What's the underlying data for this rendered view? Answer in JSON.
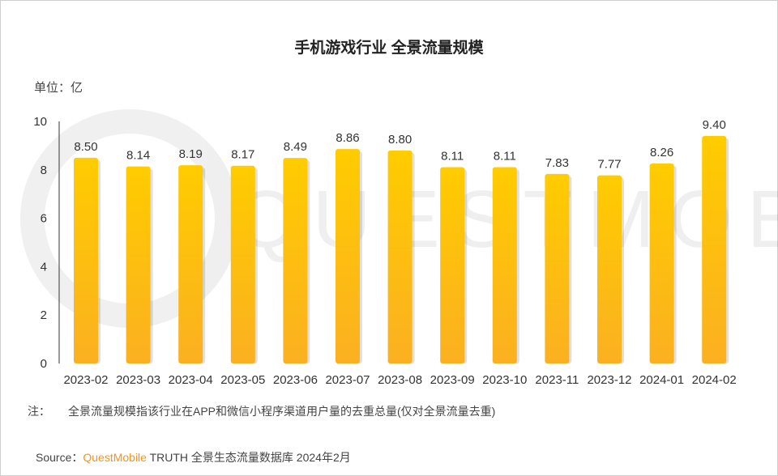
{
  "chart_data": {
    "type": "bar",
    "title": "手机游戏行业 全景流量规模",
    "unit_label": "单位：亿",
    "categories": [
      "2023-02",
      "2023-03",
      "2023-04",
      "2023-05",
      "2023-06",
      "2023-07",
      "2023-08",
      "2023-09",
      "2023-10",
      "2023-11",
      "2023-12",
      "2024-01",
      "2024-02"
    ],
    "values": [
      8.5,
      8.14,
      8.19,
      8.17,
      8.49,
      8.86,
      8.8,
      8.11,
      8.11,
      7.83,
      7.77,
      8.26,
      9.4
    ],
    "value_labels": [
      "8.50",
      "8.14",
      "8.19",
      "8.17",
      "8.49",
      "8.86",
      "8.80",
      "8.11",
      "8.11",
      "7.83",
      "7.77",
      "8.26",
      "9.40"
    ],
    "ylim": [
      0,
      10
    ],
    "yticks": [
      "0",
      "2",
      "4",
      "6",
      "8",
      "10"
    ],
    "grid": false,
    "bar_color_top": "#ffcc00",
    "bar_color_bottom": "#fbb021",
    "watermark": "QUESTMOBILE"
  },
  "note": {
    "label": "注：",
    "text": "全景流量规模指该行业在APP和微信小程序渠道用户量的去重总量(仅对全景流量去重)"
  },
  "source": {
    "prefix": "Source：",
    "brand": "QuestMobile",
    "text": " TRUTH 全景生态流量数据库 2024年2月",
    "brand_color": "#f7931e"
  }
}
